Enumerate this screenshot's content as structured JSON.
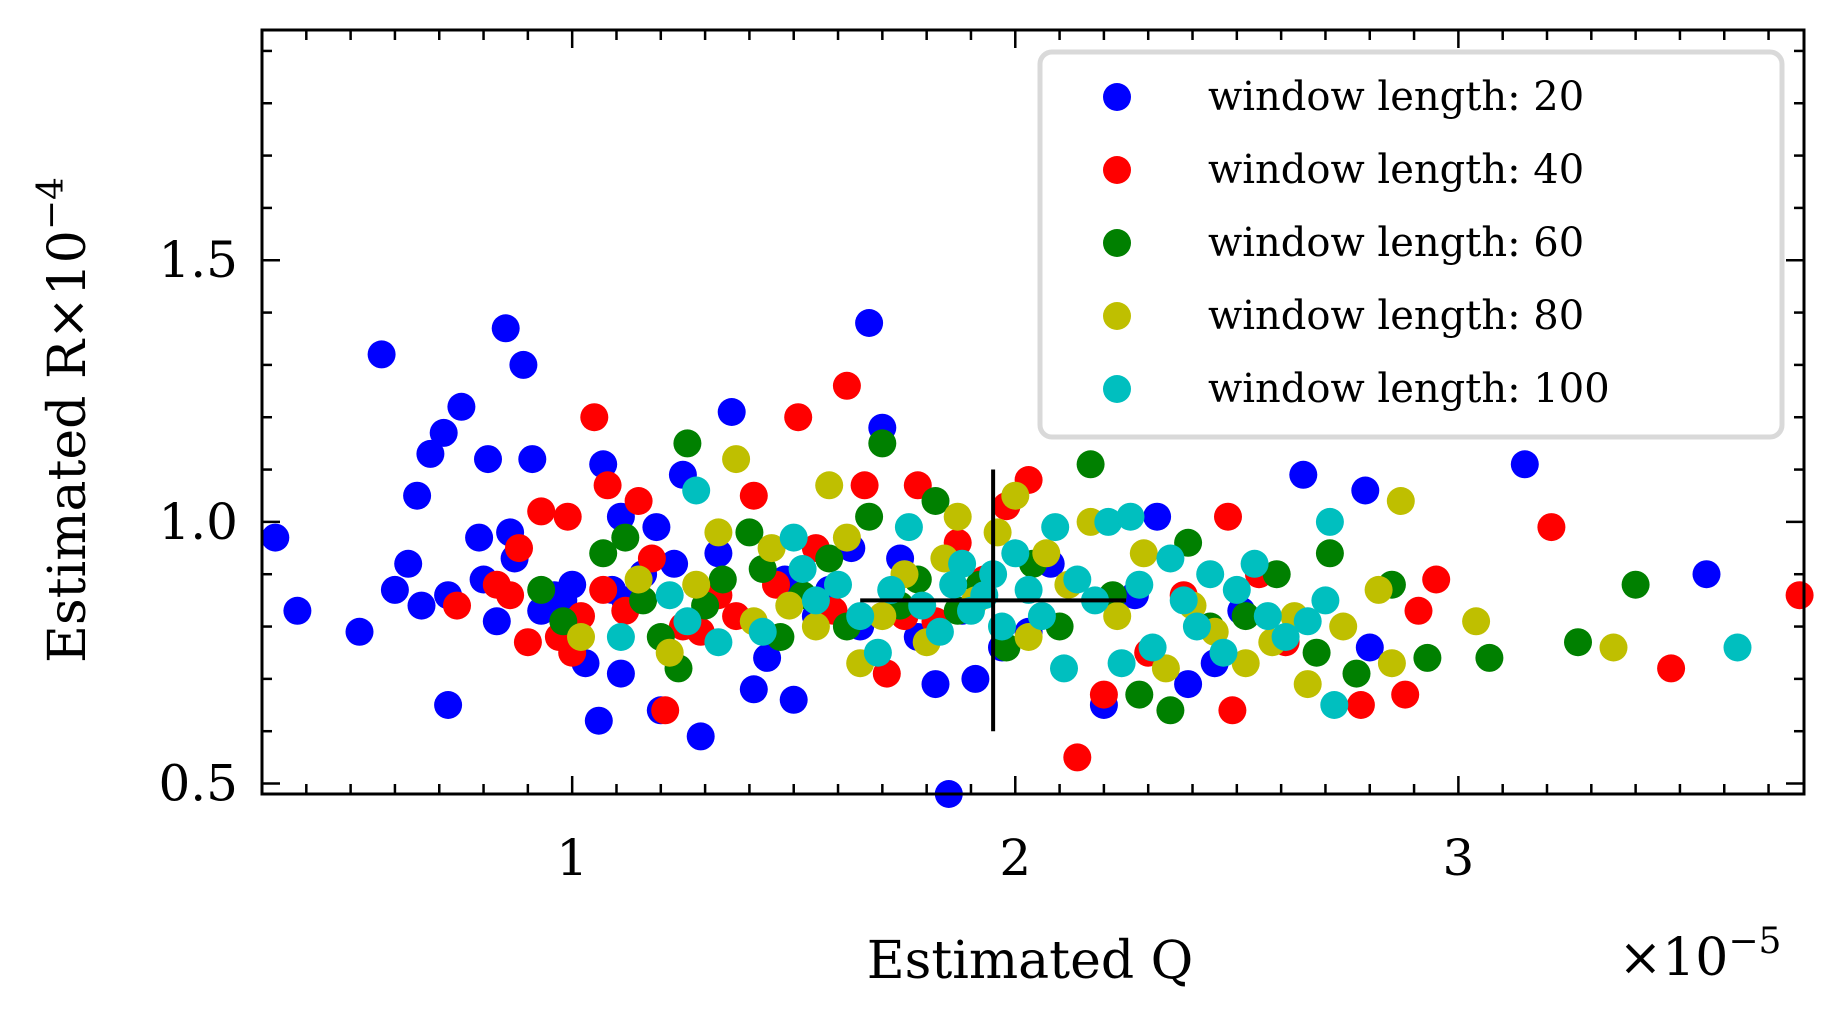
{
  "chart_data": {
    "type": "scatter",
    "xlabel": "Estimated Q",
    "x_multiplier": "×10^-5",
    "ylabel": "Estimated R×10^-4",
    "xlim": [
      0.3,
      3.78
    ],
    "ylim": [
      0.48,
      1.94
    ],
    "xticks": [
      1,
      2,
      3
    ],
    "xtick_labels": [
      "1",
      "2",
      "3"
    ],
    "yticks": [
      0.5,
      1.0,
      1.5
    ],
    "ytick_labels": [
      "0.5",
      "1.0",
      "1.5"
    ],
    "legend_position": "top-right",
    "true_value_marker": {
      "x": 1.95,
      "y": 0.85,
      "x_halfwidth": 0.3,
      "y_halfwidth": 0.25
    },
    "series": [
      {
        "name": "window length: 20",
        "color": "#0000ff",
        "points": [
          [
            0.33,
            0.97
          ],
          [
            0.38,
            0.83
          ],
          [
            0.52,
            0.79
          ],
          [
            0.57,
            1.32
          ],
          [
            0.6,
            0.87
          ],
          [
            0.63,
            0.92
          ],
          [
            0.65,
            1.05
          ],
          [
            0.66,
            0.84
          ],
          [
            0.68,
            1.13
          ],
          [
            0.71,
            1.17
          ],
          [
            0.72,
            0.86
          ],
          [
            0.72,
            0.65
          ],
          [
            0.75,
            1.22
          ],
          [
            0.79,
            0.97
          ],
          [
            0.8,
            0.89
          ],
          [
            0.81,
            1.12
          ],
          [
            0.83,
            0.81
          ],
          [
            0.85,
            1.37
          ],
          [
            0.86,
            0.98
          ],
          [
            0.87,
            0.93
          ],
          [
            0.89,
            1.3
          ],
          [
            0.91,
            1.12
          ],
          [
            0.93,
            0.83
          ],
          [
            0.96,
            0.86
          ],
          [
            0.98,
            0.85
          ],
          [
            1.0,
            0.88
          ],
          [
            1.03,
            0.73
          ],
          [
            1.06,
            0.62
          ],
          [
            1.07,
            1.11
          ],
          [
            1.09,
            0.87
          ],
          [
            1.11,
            0.71
          ],
          [
            1.11,
            1.01
          ],
          [
            1.12,
            0.85
          ],
          [
            1.16,
            0.9
          ],
          [
            1.19,
            0.99
          ],
          [
            1.2,
            0.64
          ],
          [
            1.23,
            0.92
          ],
          [
            1.25,
            1.09
          ],
          [
            1.29,
            0.59
          ],
          [
            1.33,
            0.94
          ],
          [
            1.36,
            1.21
          ],
          [
            1.41,
            0.68
          ],
          [
            1.44,
            0.74
          ],
          [
            1.48,
            0.89
          ],
          [
            1.5,
            0.66
          ],
          [
            1.55,
            0.82
          ],
          [
            1.58,
            0.87
          ],
          [
            1.63,
            0.95
          ],
          [
            1.65,
            0.8
          ],
          [
            1.67,
            1.38
          ],
          [
            1.7,
            1.18
          ],
          [
            1.74,
            0.93
          ],
          [
            1.78,
            0.78
          ],
          [
            1.82,
            0.69
          ],
          [
            1.85,
            0.48
          ],
          [
            1.88,
            0.83
          ],
          [
            1.91,
            0.7
          ],
          [
            1.97,
            0.76
          ],
          [
            2.03,
            0.79
          ],
          [
            2.08,
            0.92
          ],
          [
            2.2,
            0.65
          ],
          [
            2.27,
            0.86
          ],
          [
            2.32,
            1.01
          ],
          [
            2.39,
            0.69
          ],
          [
            2.45,
            0.73
          ],
          [
            2.51,
            0.83
          ],
          [
            2.65,
            1.09
          ],
          [
            2.79,
            1.06
          ],
          [
            2.8,
            0.76
          ],
          [
            3.15,
            1.11
          ],
          [
            3.56,
            0.9
          ]
        ]
      },
      {
        "name": "window length: 40",
        "color": "#ff0000",
        "points": [
          [
            0.74,
            0.84
          ],
          [
            0.83,
            0.88
          ],
          [
            0.86,
            0.86
          ],
          [
            0.88,
            0.95
          ],
          [
            0.9,
            0.77
          ],
          [
            0.93,
            1.02
          ],
          [
            0.97,
            0.78
          ],
          [
            0.99,
            1.01
          ],
          [
            1.0,
            0.75
          ],
          [
            1.02,
            0.82
          ],
          [
            1.05,
            1.2
          ],
          [
            1.07,
            0.87
          ],
          [
            1.08,
            1.07
          ],
          [
            1.12,
            0.83
          ],
          [
            1.15,
            1.04
          ],
          [
            1.18,
            0.93
          ],
          [
            1.21,
            0.64
          ],
          [
            1.25,
            0.8
          ],
          [
            1.29,
            0.79
          ],
          [
            1.33,
            0.86
          ],
          [
            1.37,
            0.82
          ],
          [
            1.41,
            1.05
          ],
          [
            1.46,
            0.88
          ],
          [
            1.51,
            1.2
          ],
          [
            1.55,
            0.95
          ],
          [
            1.59,
            0.83
          ],
          [
            1.62,
            1.26
          ],
          [
            1.66,
            1.07
          ],
          [
            1.71,
            0.71
          ],
          [
            1.75,
            0.82
          ],
          [
            1.78,
            1.07
          ],
          [
            1.82,
            0.81
          ],
          [
            1.87,
            0.96
          ],
          [
            1.93,
            0.89
          ],
          [
            1.98,
            1.03
          ],
          [
            2.03,
            1.08
          ],
          [
            2.14,
            0.55
          ],
          [
            2.2,
            0.67
          ],
          [
            2.3,
            0.75
          ],
          [
            2.38,
            0.86
          ],
          [
            2.48,
            1.01
          ],
          [
            2.49,
            0.64
          ],
          [
            2.55,
            0.9
          ],
          [
            2.61,
            0.77
          ],
          [
            2.78,
            0.65
          ],
          [
            2.88,
            0.67
          ],
          [
            2.91,
            0.83
          ],
          [
            2.95,
            0.89
          ],
          [
            3.21,
            0.99
          ],
          [
            3.48,
            0.72
          ],
          [
            3.77,
            0.86
          ]
        ]
      },
      {
        "name": "window length: 60",
        "color": "#008000",
        "points": [
          [
            0.93,
            0.87
          ],
          [
            0.98,
            0.81
          ],
          [
            1.07,
            0.94
          ],
          [
            1.12,
            0.97
          ],
          [
            1.16,
            0.85
          ],
          [
            1.2,
            0.78
          ],
          [
            1.24,
            0.72
          ],
          [
            1.26,
            1.15
          ],
          [
            1.3,
            0.84
          ],
          [
            1.34,
            0.89
          ],
          [
            1.4,
            0.98
          ],
          [
            1.43,
            0.91
          ],
          [
            1.47,
            0.78
          ],
          [
            1.52,
            0.86
          ],
          [
            1.58,
            0.93
          ],
          [
            1.62,
            0.8
          ],
          [
            1.67,
            1.01
          ],
          [
            1.7,
            1.15
          ],
          [
            1.74,
            0.84
          ],
          [
            1.78,
            0.89
          ],
          [
            1.82,
            1.04
          ],
          [
            1.87,
            0.83
          ],
          [
            1.92,
            0.88
          ],
          [
            1.98,
            0.76
          ],
          [
            2.04,
            0.92
          ],
          [
            2.1,
            0.8
          ],
          [
            2.17,
            1.11
          ],
          [
            2.22,
            0.86
          ],
          [
            2.28,
            0.67
          ],
          [
            2.35,
            0.64
          ],
          [
            2.39,
            0.96
          ],
          [
            2.44,
            0.8
          ],
          [
            2.52,
            0.82
          ],
          [
            2.59,
            0.9
          ],
          [
            2.68,
            0.75
          ],
          [
            2.71,
            0.94
          ],
          [
            2.77,
            0.71
          ],
          [
            2.85,
            0.88
          ],
          [
            2.93,
            0.74
          ],
          [
            3.07,
            0.74
          ],
          [
            3.27,
            0.77
          ],
          [
            3.4,
            0.88
          ]
        ]
      },
      {
        "name": "window length: 80",
        "color": "#bfbf00",
        "points": [
          [
            1.02,
            0.78
          ],
          [
            1.15,
            0.89
          ],
          [
            1.22,
            0.75
          ],
          [
            1.28,
            0.88
          ],
          [
            1.33,
            0.98
          ],
          [
            1.37,
            1.12
          ],
          [
            1.41,
            0.81
          ],
          [
            1.45,
            0.95
          ],
          [
            1.49,
            0.84
          ],
          [
            1.55,
            0.8
          ],
          [
            1.58,
            1.07
          ],
          [
            1.62,
            0.97
          ],
          [
            1.65,
            0.73
          ],
          [
            1.7,
            0.82
          ],
          [
            1.75,
            0.9
          ],
          [
            1.8,
            0.77
          ],
          [
            1.84,
            0.93
          ],
          [
            1.87,
            1.01
          ],
          [
            1.91,
            0.85
          ],
          [
            1.96,
            0.98
          ],
          [
            2.0,
            1.05
          ],
          [
            2.03,
            0.78
          ],
          [
            2.07,
            0.94
          ],
          [
            2.12,
            0.88
          ],
          [
            2.17,
            1.0
          ],
          [
            2.23,
            0.82
          ],
          [
            2.29,
            0.94
          ],
          [
            2.34,
            0.72
          ],
          [
            2.4,
            0.84
          ],
          [
            2.45,
            0.79
          ],
          [
            2.52,
            0.73
          ],
          [
            2.58,
            0.77
          ],
          [
            2.63,
            0.82
          ],
          [
            2.66,
            0.69
          ],
          [
            2.74,
            0.8
          ],
          [
            2.82,
            0.87
          ],
          [
            2.85,
            0.73
          ],
          [
            2.87,
            1.04
          ],
          [
            3.04,
            0.81
          ],
          [
            3.35,
            0.76
          ]
        ]
      },
      {
        "name": "window length: 100",
        "color": "#00bfbf",
        "points": [
          [
            1.11,
            0.78
          ],
          [
            1.22,
            0.86
          ],
          [
            1.26,
            0.81
          ],
          [
            1.28,
            1.06
          ],
          [
            1.33,
            0.77
          ],
          [
            1.43,
            0.79
          ],
          [
            1.5,
            0.97
          ],
          [
            1.52,
            0.91
          ],
          [
            1.55,
            0.85
          ],
          [
            1.6,
            0.88
          ],
          [
            1.65,
            0.82
          ],
          [
            1.69,
            0.75
          ],
          [
            1.72,
            0.87
          ],
          [
            1.76,
            0.99
          ],
          [
            1.79,
            0.84
          ],
          [
            1.83,
            0.79
          ],
          [
            1.86,
            0.88
          ],
          [
            1.88,
            0.92
          ],
          [
            1.9,
            0.83
          ],
          [
            1.93,
            0.86
          ],
          [
            1.95,
            0.9
          ],
          [
            1.97,
            0.8
          ],
          [
            2.0,
            0.94
          ],
          [
            2.03,
            0.87
          ],
          [
            2.06,
            0.82
          ],
          [
            2.09,
            0.99
          ],
          [
            2.11,
            0.72
          ],
          [
            2.14,
            0.89
          ],
          [
            2.18,
            0.85
          ],
          [
            2.21,
            1.0
          ],
          [
            2.24,
            0.73
          ],
          [
            2.26,
            1.01
          ],
          [
            2.28,
            0.88
          ],
          [
            2.31,
            0.76
          ],
          [
            2.35,
            0.93
          ],
          [
            2.38,
            0.85
          ],
          [
            2.41,
            0.8
          ],
          [
            2.44,
            0.9
          ],
          [
            2.47,
            0.75
          ],
          [
            2.5,
            0.87
          ],
          [
            2.54,
            0.92
          ],
          [
            2.57,
            0.82
          ],
          [
            2.61,
            0.78
          ],
          [
            2.66,
            0.81
          ],
          [
            2.7,
            0.85
          ],
          [
            2.71,
            1.0
          ],
          [
            2.72,
            0.65
          ],
          [
            3.63,
            0.76
          ]
        ]
      }
    ]
  }
}
